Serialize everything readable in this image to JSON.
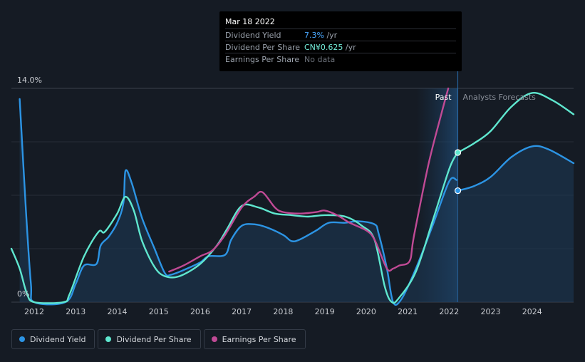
{
  "tooltip": {
    "date": "Mar 18 2022",
    "rows": [
      {
        "label": "Dividend Yield",
        "value": "7.3%",
        "unit": " /yr",
        "color": "#4aa8ff"
      },
      {
        "label": "Dividend Per Share",
        "value": "CN¥0.625",
        "unit": " /yr",
        "color": "#76f2de"
      },
      {
        "label": "Earnings Per Share",
        "value": "No data",
        "unit": "",
        "color": "#6b7079"
      }
    ]
  },
  "legend": [
    {
      "label": "Dividend Yield",
      "color": "#2c94e4"
    },
    {
      "label": "Dividend Per Share",
      "color": "#5fe7cf"
    },
    {
      "label": "Earnings Per Share",
      "color": "#c04a95"
    }
  ],
  "chart_data": {
    "type": "line",
    "x_ticks": [
      "2012",
      "2013",
      "2014",
      "2015",
      "2016",
      "2017",
      "2018",
      "2019",
      "2020",
      "2021",
      "2022",
      "2023",
      "2024"
    ],
    "y_ticks": [
      "14.0%",
      "0%"
    ],
    "xlim": [
      2011.45,
      2025.0
    ],
    "ylim": [
      0,
      14
    ],
    "past_label": "Past",
    "forecast_label": "Analysts Forecasts",
    "divider_x": 2022.21,
    "series": [
      {
        "name": "Dividend Yield",
        "color": "#2c94e4",
        "area": true,
        "axis": "pct",
        "points": [
          [
            2011.65,
            13.3
          ],
          [
            2011.8,
            6
          ],
          [
            2011.92,
            1.2
          ],
          [
            2012.0,
            0
          ],
          [
            2012.75,
            0
          ],
          [
            2013.0,
            1.2
          ],
          [
            2013.2,
            2.4
          ],
          [
            2013.5,
            2.5
          ],
          [
            2013.6,
            3.7
          ],
          [
            2013.8,
            4.3
          ],
          [
            2014.0,
            5.2
          ],
          [
            2014.15,
            6.5
          ],
          [
            2014.2,
            8.6
          ],
          [
            2014.35,
            7.8
          ],
          [
            2014.6,
            5.5
          ],
          [
            2014.9,
            3.5
          ],
          [
            2015.15,
            1.9
          ],
          [
            2015.3,
            1.8
          ],
          [
            2015.6,
            2.1
          ],
          [
            2016.0,
            2.6
          ],
          [
            2016.2,
            3.0
          ],
          [
            2016.6,
            3.1
          ],
          [
            2016.75,
            4.1
          ],
          [
            2017.0,
            5.0
          ],
          [
            2017.3,
            5.1
          ],
          [
            2017.6,
            4.9
          ],
          [
            2018.0,
            4.4
          ],
          [
            2018.2,
            4.0
          ],
          [
            2018.4,
            4.1
          ],
          [
            2018.8,
            4.7
          ],
          [
            2019.1,
            5.2
          ],
          [
            2019.5,
            5.2
          ],
          [
            2019.8,
            5.3
          ],
          [
            2020.2,
            5.1
          ],
          [
            2020.3,
            4.5
          ],
          [
            2020.5,
            2.2
          ],
          [
            2020.65,
            0
          ],
          [
            2020.85,
            0.2
          ],
          [
            2021.2,
            2.2
          ],
          [
            2021.6,
            5.0
          ],
          [
            2022.0,
            7.9
          ],
          [
            2022.18,
            8.0
          ]
        ]
      },
      {
        "name": "Dividend Yield Forecast",
        "color": "#2c94e4",
        "area": true,
        "axis": "pct",
        "points": [
          [
            2022.21,
            7.3
          ],
          [
            2022.6,
            7.6
          ],
          [
            2023.0,
            8.2
          ],
          [
            2023.5,
            9.5
          ],
          [
            2024.0,
            10.2
          ],
          [
            2024.4,
            10.0
          ],
          [
            2025.0,
            9.1
          ]
        ]
      },
      {
        "name": "Dividend Per Share",
        "color": "#5fe7cf",
        "area": false,
        "axis": "pct",
        "points": [
          [
            2011.45,
            3.5
          ],
          [
            2011.65,
            2.2
          ],
          [
            2011.82,
            0.6
          ],
          [
            2012.0,
            0
          ],
          [
            2012.7,
            0
          ],
          [
            2012.85,
            0.5
          ],
          [
            2013.2,
            3.0
          ],
          [
            2013.55,
            4.6
          ],
          [
            2013.7,
            4.6
          ],
          [
            2014.0,
            5.8
          ],
          [
            2014.2,
            6.9
          ],
          [
            2014.4,
            6.0
          ],
          [
            2014.6,
            4.0
          ],
          [
            2014.9,
            2.3
          ],
          [
            2015.15,
            1.7
          ],
          [
            2015.5,
            1.7
          ],
          [
            2016.0,
            2.5
          ],
          [
            2016.4,
            3.7
          ],
          [
            2016.65,
            4.8
          ],
          [
            2017.0,
            6.3
          ],
          [
            2017.4,
            6.2
          ],
          [
            2017.8,
            5.8
          ],
          [
            2018.2,
            5.7
          ],
          [
            2018.6,
            5.6
          ],
          [
            2019.0,
            5.7
          ],
          [
            2019.5,
            5.6
          ],
          [
            2019.9,
            5.0
          ],
          [
            2020.2,
            4.1
          ],
          [
            2020.45,
            1.0
          ],
          [
            2020.62,
            0
          ],
          [
            2020.8,
            0.3
          ],
          [
            2021.2,
            2.0
          ],
          [
            2021.6,
            5.3
          ],
          [
            2022.0,
            8.7
          ],
          [
            2022.18,
            9.7
          ]
        ]
      },
      {
        "name": "Dividend Per Share Forecast",
        "color": "#5fe7cf",
        "area": false,
        "axis": "pct",
        "points": [
          [
            2022.21,
            9.8
          ],
          [
            2022.6,
            10.4
          ],
          [
            2023.0,
            11.2
          ],
          [
            2023.5,
            12.8
          ],
          [
            2024.0,
            13.7
          ],
          [
            2024.5,
            13.2
          ],
          [
            2025.0,
            12.3
          ]
        ]
      },
      {
        "name": "Earnings Per Share",
        "color": "#c04a95",
        "area": false,
        "axis": "pct",
        "points": [
          [
            2015.25,
            2.0
          ],
          [
            2015.6,
            2.4
          ],
          [
            2016.0,
            3.0
          ],
          [
            2016.3,
            3.4
          ],
          [
            2016.6,
            4.4
          ],
          [
            2017.0,
            6.2
          ],
          [
            2017.3,
            6.9
          ],
          [
            2017.5,
            7.2
          ],
          [
            2017.8,
            6.2
          ],
          [
            2018.0,
            5.9
          ],
          [
            2018.4,
            5.8
          ],
          [
            2018.8,
            5.9
          ],
          [
            2019.0,
            6.0
          ],
          [
            2019.3,
            5.7
          ],
          [
            2019.6,
            5.2
          ],
          [
            2020.0,
            4.7
          ],
          [
            2020.2,
            4.1
          ],
          [
            2020.5,
            2.2
          ],
          [
            2020.65,
            2.2
          ],
          [
            2020.8,
            2.4
          ],
          [
            2021.05,
            2.7
          ],
          [
            2021.15,
            4.3
          ],
          [
            2021.5,
            9.0
          ],
          [
            2021.8,
            12.2
          ],
          [
            2021.98,
            14.0
          ]
        ]
      }
    ],
    "markers": [
      {
        "series": "Dividend Per Share",
        "x": 2022.21,
        "y": 9.8
      },
      {
        "series": "Dividend Yield",
        "x": 2022.21,
        "y": 7.3
      }
    ]
  }
}
